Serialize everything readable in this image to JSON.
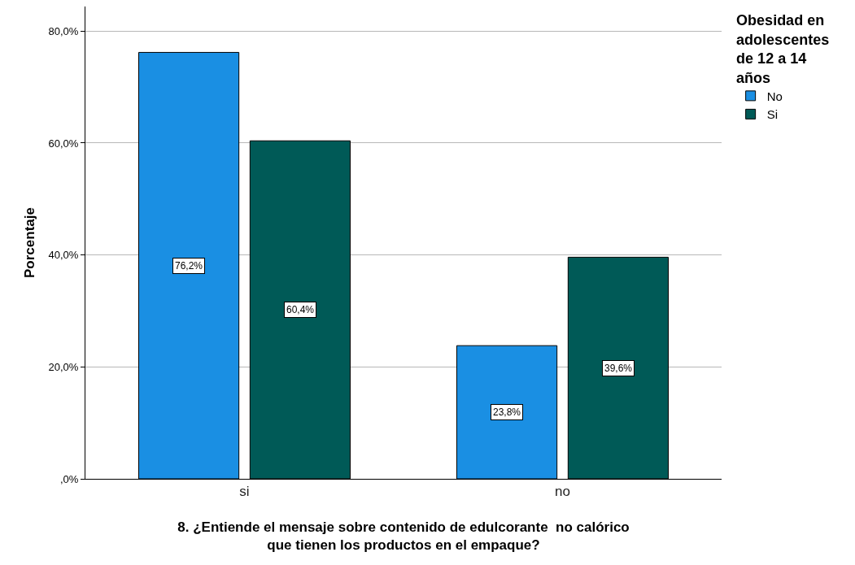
{
  "chart_data": {
    "type": "bar",
    "xlabel": "8. ¿Entiende el mensaje sobre contenido de edulcorante  no calórico que tienen los productos en el empaque?",
    "ylabel": "Porcentaje",
    "legend_title": "Obesidad en adolescentes de 12 a 14 años",
    "categories": [
      "si",
      "no"
    ],
    "series": [
      {
        "name": "No",
        "color": "#1a8fe3",
        "values": [
          76.2,
          23.8
        ],
        "value_labels": [
          "76,2%",
          "23,8%"
        ]
      },
      {
        "name": "Si",
        "color": "#005a57",
        "values": [
          60.4,
          39.6
        ],
        "value_labels": [
          "60,4%",
          "39,6%"
        ]
      }
    ],
    "ylim": [
      0,
      84.4
    ],
    "yticks": [
      {
        "value": 0,
        "label": ",0%"
      },
      {
        "value": 20,
        "label": "20,0%"
      },
      {
        "value": 40,
        "label": "40,0%"
      },
      {
        "value": 60,
        "label": "60,0%"
      },
      {
        "value": 80,
        "label": "80,0%"
      }
    ],
    "grid": "y",
    "legend": "top right"
  }
}
